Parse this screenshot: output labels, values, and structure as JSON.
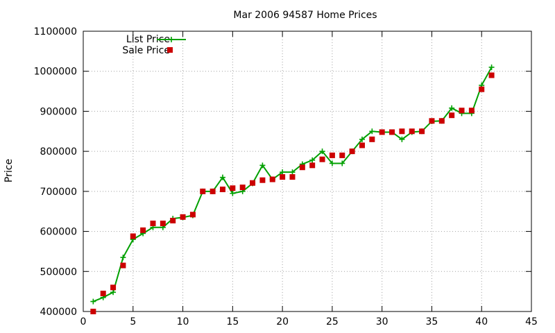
{
  "chart_data": {
    "type": "line",
    "title": "Mar 2006 94587 Home Prices",
    "xlabel": "",
    "ylabel": "Price",
    "xlim": [
      0,
      45
    ],
    "ylim": [
      400000,
      1100000
    ],
    "x_ticks": [
      0,
      5,
      10,
      15,
      20,
      25,
      30,
      35,
      40,
      45
    ],
    "y_ticks": [
      400000,
      500000,
      600000,
      700000,
      800000,
      900000,
      1000000,
      1100000
    ],
    "grid": true,
    "legend_position": "top-left",
    "series": [
      {
        "name": "List Price",
        "style": "line+plus",
        "color": "#00a000",
        "x": [
          1,
          2,
          3,
          4,
          5,
          6,
          7,
          8,
          9,
          10,
          11,
          12,
          13,
          14,
          15,
          16,
          17,
          18,
          19,
          20,
          21,
          22,
          23,
          24,
          25,
          26,
          27,
          28,
          29,
          30,
          31,
          32,
          33,
          34,
          35,
          36,
          37,
          38,
          39,
          40,
          41
        ],
        "values": [
          425000,
          435000,
          448000,
          535000,
          580000,
          595000,
          610000,
          610000,
          632000,
          635000,
          640000,
          700000,
          700000,
          735000,
          695000,
          700000,
          720000,
          765000,
          730000,
          748000,
          748000,
          768000,
          778000,
          800000,
          770000,
          770000,
          800000,
          830000,
          850000,
          848000,
          848000,
          830000,
          848000,
          850000,
          875000,
          876000,
          908000,
          895000,
          895000,
          965000,
          1010000
        ]
      },
      {
        "name": "Sale Price",
        "style": "square-markers",
        "color": "#cc0000",
        "x": [
          1,
          2,
          3,
          4,
          5,
          6,
          7,
          8,
          9,
          10,
          11,
          12,
          13,
          14,
          15,
          16,
          17,
          18,
          19,
          20,
          21,
          22,
          23,
          24,
          25,
          26,
          27,
          28,
          29,
          30,
          31,
          32,
          33,
          34,
          35,
          36,
          37,
          38,
          39,
          40,
          41
        ],
        "values": [
          400000,
          445000,
          460000,
          515000,
          588000,
          603000,
          620000,
          620000,
          627000,
          636000,
          642000,
          700000,
          700000,
          705000,
          708000,
          710000,
          721000,
          728000,
          730000,
          736000,
          736000,
          760000,
          765000,
          780000,
          790000,
          790000,
          800000,
          815000,
          830000,
          848000,
          848000,
          850000,
          850000,
          850000,
          876000,
          876000,
          890000,
          902000,
          902000,
          955000,
          990000
        ]
      }
    ]
  }
}
